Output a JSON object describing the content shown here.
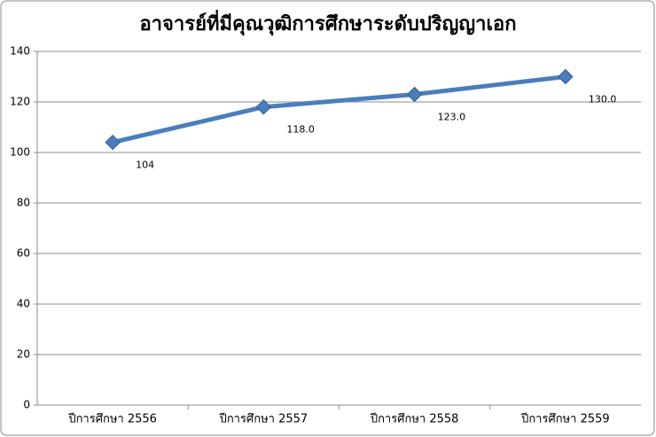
{
  "chart_data": {
    "type": "line",
    "title": "อาจารย์ที่มีคุณวุฒิการศึกษาระดับปริญญาเอก",
    "categories": [
      "ปีการศึกษา 2556",
      "ปีการศึกษา 2557",
      "ปีการศึกษา 2558",
      "ปีการศึกษา 2559"
    ],
    "values": [
      104,
      118,
      123,
      130
    ],
    "value_labels": [
      "104",
      "118.0",
      "123.0",
      "130.0"
    ],
    "color": "#4a7ebb",
    "ylim": [
      0,
      140
    ],
    "yticks": [
      0,
      20,
      40,
      60,
      80,
      100,
      120,
      140
    ],
    "grid": true
  }
}
